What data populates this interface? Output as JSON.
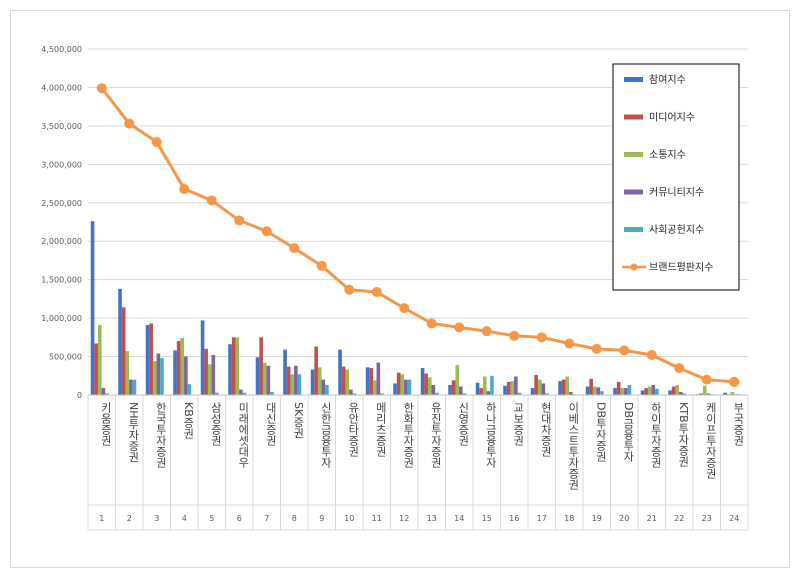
{
  "chart_data": {
    "type": "bar",
    "title": "",
    "xlabel": "",
    "ylabel": "",
    "ylim": [
      0,
      4500000
    ],
    "y_ticks": [
      "0",
      "500,000",
      "1,000,000",
      "1,500,000",
      "2,000,000",
      "2,500,000",
      "3,000,000",
      "3,500,000",
      "4,000,000",
      "4,500,000"
    ],
    "grid": true,
    "legend_position": "top-right",
    "categories": [
      "키움증권",
      "NH투자증권",
      "한국투자증권",
      "KB증권",
      "삼성증권",
      "미래에셋대우",
      "대신증권",
      "SK증권",
      "신한금융투자",
      "유안타증권",
      "메리츠증권",
      "한화투자증권",
      "유진투자증권",
      "신영증권",
      "하나금융투자",
      "교보증권",
      "현대차증권",
      "이베스트투자증권",
      "DB투자증권",
      "DB금융투자",
      "하이투자증권",
      "KTB투자증권",
      "케이프투자증권",
      "부국증권"
    ],
    "numbers": [
      "1",
      "2",
      "3",
      "4",
      "5",
      "6",
      "7",
      "8",
      "9",
      "10",
      "11",
      "12",
      "13",
      "14",
      "15",
      "16",
      "17",
      "18",
      "19",
      "20",
      "21",
      "22",
      "23",
      "24"
    ],
    "series": [
      {
        "name": "참여지수",
        "kind": "bar",
        "color": "#4472c4",
        "values": [
          2260000,
          1380000,
          910000,
          580000,
          970000,
          660000,
          490000,
          590000,
          330000,
          590000,
          360000,
          150000,
          350000,
          130000,
          160000,
          120000,
          90000,
          180000,
          110000,
          90000,
          60000,
          60000,
          10000,
          30000
        ]
      },
      {
        "name": "미디어지수",
        "kind": "bar",
        "color": "#c0504d",
        "values": [
          670000,
          1140000,
          930000,
          700000,
          600000,
          750000,
          750000,
          370000,
          630000,
          370000,
          350000,
          290000,
          280000,
          190000,
          90000,
          170000,
          260000,
          200000,
          210000,
          170000,
          90000,
          110000,
          20000,
          10000
        ]
      },
      {
        "name": "소통지수",
        "kind": "bar",
        "color": "#9bbb59",
        "values": [
          910000,
          570000,
          440000,
          740000,
          400000,
          750000,
          420000,
          270000,
          360000,
          330000,
          190000,
          270000,
          230000,
          390000,
          240000,
          180000,
          200000,
          240000,
          110000,
          90000,
          110000,
          130000,
          120000,
          40000
        ]
      },
      {
        "name": "커뮤니티지수",
        "kind": "bar",
        "color": "#8064a2",
        "values": [
          90000,
          200000,
          540000,
          500000,
          520000,
          70000,
          380000,
          380000,
          200000,
          70000,
          420000,
          200000,
          130000,
          110000,
          50000,
          240000,
          150000,
          40000,
          100000,
          90000,
          130000,
          40000,
          20000,
          10000
        ]
      },
      {
        "name": "사회공헌지수",
        "kind": "bar",
        "color": "#4bacc6",
        "values": [
          20000,
          200000,
          480000,
          140000,
          30000,
          30000,
          40000,
          270000,
          130000,
          20000,
          20000,
          200000,
          30000,
          20000,
          250000,
          30000,
          20000,
          10000,
          50000,
          130000,
          80000,
          20000,
          10000,
          10000
        ]
      },
      {
        "name": "브랜드평판지수",
        "kind": "line",
        "color": "#f79646",
        "values": [
          3990000,
          3530000,
          3290000,
          2680000,
          2530000,
          2270000,
          2130000,
          1910000,
          1680000,
          1370000,
          1340000,
          1130000,
          930000,
          880000,
          830000,
          770000,
          750000,
          670000,
          600000,
          580000,
          520000,
          350000,
          200000,
          170000
        ]
      }
    ]
  }
}
